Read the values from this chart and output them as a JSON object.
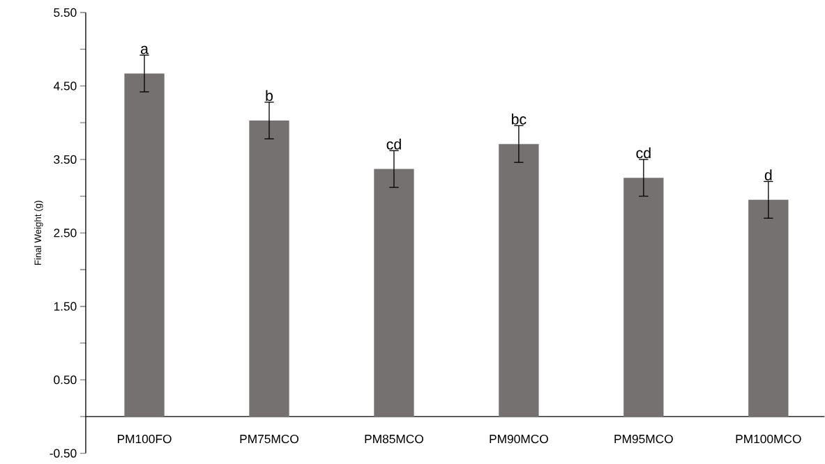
{
  "chart_data": {
    "type": "bar",
    "ylabel": "Final Weight (g)",
    "categories": [
      "PM100FO",
      "PM75MCO",
      "PM85MCO",
      "PM90MCO",
      "PM95MCO",
      "PM100MCO"
    ],
    "values": [
      4.67,
      4.03,
      3.37,
      3.71,
      3.25,
      2.95
    ],
    "errors": [
      0.25,
      0.25,
      0.25,
      0.25,
      0.25,
      0.25
    ],
    "color": "#767171",
    "ylim": [
      -0.5,
      5.5
    ],
    "yticks": [
      {
        "value": -0.5,
        "label": "-0.50"
      },
      {
        "value": 0,
        "label": null
      },
      {
        "value": 0.5,
        "label": "0.50"
      },
      {
        "value": 1,
        "label": null
      },
      {
        "value": 1.5,
        "label": "1.50"
      },
      {
        "value": 2,
        "label": null
      },
      {
        "value": 2.5,
        "label": "2.50"
      },
      {
        "value": 3,
        "label": null
      },
      {
        "value": 3.5,
        "label": "3.50"
      },
      {
        "value": 4,
        "label": null
      },
      {
        "value": 4.5,
        "label": "4.50"
      },
      {
        "value": 5,
        "label": null
      },
      {
        "value": 5.5,
        "label": "5.50"
      }
    ],
    "annotations": [
      {
        "text": "a",
        "x": "PM100FO",
        "y": 4.92
      },
      {
        "text": "b",
        "x": "PM75MCO",
        "y": 4.28
      },
      {
        "text": "cd",
        "x": "PM85MCO",
        "y": 3.62
      },
      {
        "text": "bc",
        "x": "PM90MCO",
        "y": 3.96
      },
      {
        "text": "cd",
        "x": "PM95MCO",
        "y": 3.5
      },
      {
        "text": "d",
        "x": "PM100MCO",
        "y": 3.2
      }
    ]
  }
}
